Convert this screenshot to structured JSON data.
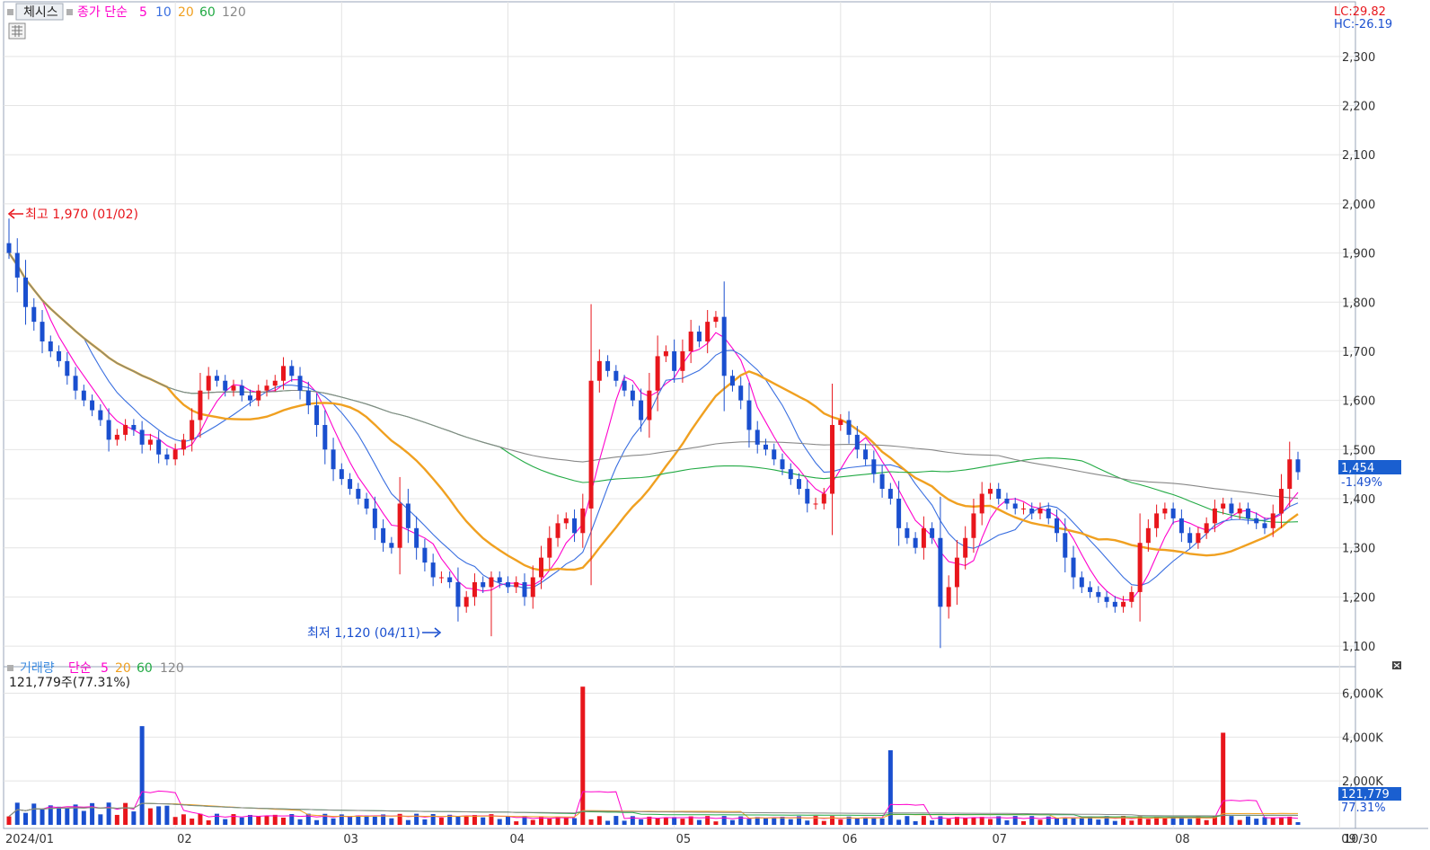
{
  "price_panel": {
    "indicator_name": "체시스",
    "ma_type_label": "종가 단순",
    "ma_periods": [
      "5",
      "10",
      "20",
      "60",
      "120"
    ],
    "ma_colors": [
      "#ff00cc",
      "#3a6fe0",
      "#f0a020",
      "#22aa44",
      "#888888"
    ],
    "lc_label": "LC:29.82",
    "hc_label": "HC:-26.19",
    "current_price_label": "1,454",
    "current_change_label": "-1.49%",
    "high_annotation": "최고 1,970 (01/02)",
    "low_annotation": "최저 1,120 (04/11)",
    "y_ticks": [
      "2,300",
      "2,200",
      "2,100",
      "2,000",
      "1,900",
      "1,800",
      "1,700",
      "1,600",
      "1,500",
      "1,400",
      "1,300",
      "1,200",
      "1,100"
    ]
  },
  "volume_panel": {
    "title": "거래량",
    "ma_type_label": "단순",
    "ma_periods": [
      "5",
      "20",
      "60",
      "120"
    ],
    "volume_summary": "121,779주(77.31%)",
    "current_volume_label": "121,779",
    "current_ratio_label": "77.31%",
    "y_ticks": [
      "6,000K",
      "4,000K",
      "2,000K"
    ]
  },
  "x_axis": {
    "labels": [
      "2024/01",
      "02",
      "03",
      "04",
      "05",
      "06",
      "07",
      "08",
      "09",
      "10"
    ],
    "end_label": "10/30"
  },
  "colors": {
    "up": "#e8161c",
    "down": "#1a4fcf",
    "grid": "#e4e4e4",
    "badge": "#1a5fd0"
  },
  "chart_data": {
    "type": "candlestick",
    "price_ylim": [
      1080,
      2360
    ],
    "volume_ylim": [
      0,
      6800000
    ],
    "high": {
      "value": 1970,
      "date": "01/02"
    },
    "low": {
      "value": 1120,
      "date": "04/11"
    },
    "last_close": 1454,
    "last_volume": 121779,
    "series_close": [
      {
        "name": "close",
        "values": [
          1900,
          1850,
          1790,
          1760,
          1720,
          1700,
          1680,
          1650,
          1620,
          1600,
          1580,
          1560,
          1520,
          1530,
          1550,
          1540,
          1510,
          1520,
          1490,
          1480,
          1500,
          1520,
          1560,
          1620,
          1650,
          1640,
          1620,
          1630,
          1610,
          1600,
          1620,
          1630,
          1640,
          1670,
          1650,
          1620,
          1590,
          1550,
          1500,
          1460,
          1440,
          1420,
          1400,
          1380,
          1340,
          1310,
          1300,
          1390,
          1340,
          1300,
          1270,
          1240,
          1240,
          1230,
          1180,
          1200,
          1230,
          1220,
          1240,
          1230,
          1220,
          1230,
          1200,
          1240,
          1280,
          1320,
          1350,
          1360,
          1330,
          1380,
          1640,
          1680,
          1660,
          1640,
          1620,
          1600,
          1560,
          1620,
          1690,
          1700,
          1660,
          1700,
          1740,
          1720,
          1760,
          1770,
          1650,
          1630,
          1600,
          1540,
          1510,
          1500,
          1480,
          1460,
          1440,
          1420,
          1390,
          1390,
          1410,
          1550,
          1560,
          1530,
          1500,
          1480,
          1450,
          1420,
          1400,
          1340,
          1320,
          1300,
          1340,
          1320,
          1180,
          1220,
          1280,
          1320,
          1370,
          1410,
          1420,
          1400,
          1390,
          1380,
          1380,
          1370,
          1380,
          1360,
          1330,
          1280,
          1240,
          1220,
          1210,
          1200,
          1190,
          1180,
          1190,
          1210,
          1310,
          1340,
          1370,
          1380,
          1360,
          1330,
          1310,
          1330,
          1350,
          1380,
          1390,
          1370,
          1380,
          1360,
          1350,
          1340,
          1370,
          1420,
          1480,
          1454
        ]
      }
    ],
    "volume_peaks_k": [
      {
        "date": "01/23",
        "value": 4500
      },
      {
        "date": "05/09",
        "value": 6300
      },
      {
        "date": "07/04",
        "value": 3400
      },
      {
        "date": "09/13",
        "value": 4200
      }
    ]
  }
}
